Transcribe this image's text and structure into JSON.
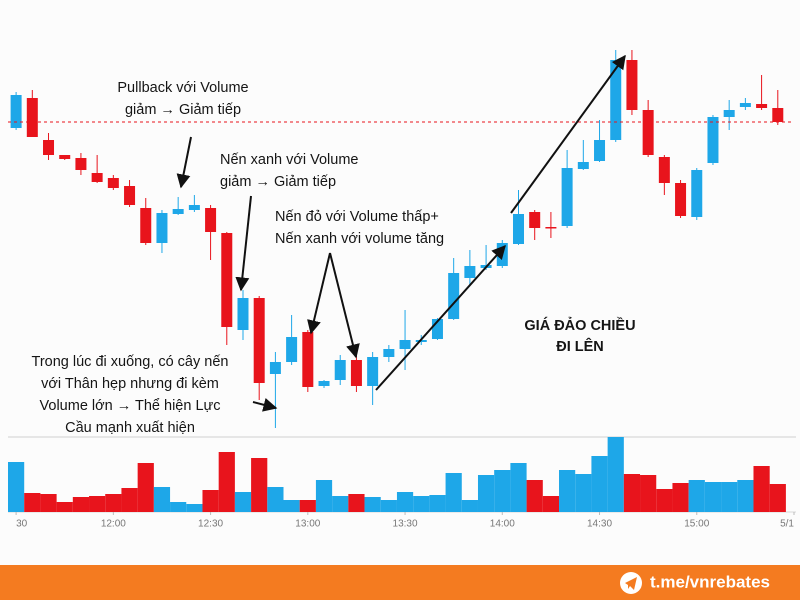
{
  "chart_data": {
    "type": "candlestick",
    "up_color": "#1ea7e8",
    "down_color": "#e8141c",
    "open": [
      472,
      502,
      460,
      445,
      442,
      427,
      422,
      414,
      392,
      357,
      386,
      390,
      392,
      367,
      270,
      302,
      226,
      238,
      268,
      214,
      220,
      240,
      214,
      243,
      251,
      258,
      261,
      281,
      322,
      332,
      334,
      356,
      388,
      373,
      374,
      431,
      439,
      460,
      540,
      490,
      443,
      417,
      383,
      437,
      483,
      493,
      496,
      492
    ],
    "high": [
      508,
      510,
      467,
      445,
      447,
      445,
      425,
      420,
      402,
      390,
      403,
      405,
      395,
      368,
      310,
      304,
      248,
      285,
      270,
      220,
      245,
      250,
      248,
      255,
      290,
      265,
      282,
      342,
      350,
      355,
      360,
      410,
      390,
      388,
      450,
      460,
      480,
      550,
      550,
      500,
      445,
      420,
      432,
      485,
      500,
      502,
      525,
      510
    ],
    "low": [
      470,
      463,
      440,
      440,
      425,
      417,
      410,
      393,
      355,
      347,
      385,
      388,
      340,
      255,
      260,
      200,
      172,
      235,
      208,
      212,
      215,
      208,
      195,
      238,
      230,
      255,
      260,
      280,
      315,
      330,
      332,
      355,
      360,
      362,
      372,
      430,
      438,
      458,
      485,
      443,
      405,
      382,
      380,
      435,
      470,
      490,
      490,
      475
    ],
    "close": [
      505,
      463,
      445,
      441,
      430,
      418,
      412,
      395,
      357,
      387,
      391,
      395,
      368,
      273,
      302,
      217,
      238,
      263,
      213,
      219,
      240,
      214,
      243,
      251,
      260,
      260,
      281,
      327,
      334,
      335,
      357,
      386,
      372,
      372,
      432,
      438,
      460,
      540,
      490,
      445,
      417,
      384,
      430,
      483,
      490,
      497,
      492,
      478
    ],
    "volume": [
      50,
      19,
      18,
      10,
      15,
      16,
      18,
      24,
      49,
      25,
      10,
      8,
      22,
      60,
      20,
      54,
      25,
      12,
      12,
      32,
      16,
      18,
      15,
      12,
      20,
      16,
      17,
      39,
      12,
      37,
      42,
      49,
      32,
      16,
      42,
      38,
      56,
      75,
      38,
      37,
      23,
      29,
      32,
      30,
      30,
      32,
      46,
      28
    ],
    "xlim": [
      -0.5,
      48
    ],
    "ylim": [
      165,
      555
    ],
    "volume_lim": [
      0,
      75
    ],
    "ref_line": 478,
    "ref_color": "#e8141c",
    "xticks": [
      {
        "value": 0,
        "label": "30"
      },
      {
        "value": 6,
        "label": "12:00"
      },
      {
        "value": 12,
        "label": "12:30"
      },
      {
        "value": 18,
        "label": "13:00"
      },
      {
        "value": 24,
        "label": "13:30"
      },
      {
        "value": 30,
        "label": "14:00"
      },
      {
        "value": 36,
        "label": "14:30"
      },
      {
        "value": 42,
        "label": "15:00"
      },
      {
        "value": 48,
        "label": "5/1"
      }
    ],
    "annotations": [
      [
        "Pullback với Volume",
        "giảm → Giảm tiếp"
      ],
      [
        "Nến xanh với Volume",
        "giảm → Giảm tiếp"
      ],
      [
        "Nến đỏ với Volume thấp+",
        "Nến xanh với volume tăng"
      ],
      [
        "Trong lúc đi xuống, có cây nến",
        "với Thân hẹp nhưng đi kèm",
        "Volume lớn → Thể hiện Lực",
        "Cầu mạnh xuất hiện"
      ],
      [
        "GIÁ ĐẢO CHIỀU",
        "ĐI LÊN"
      ]
    ]
  },
  "footer": {
    "link": "t.me/vnrebates"
  }
}
